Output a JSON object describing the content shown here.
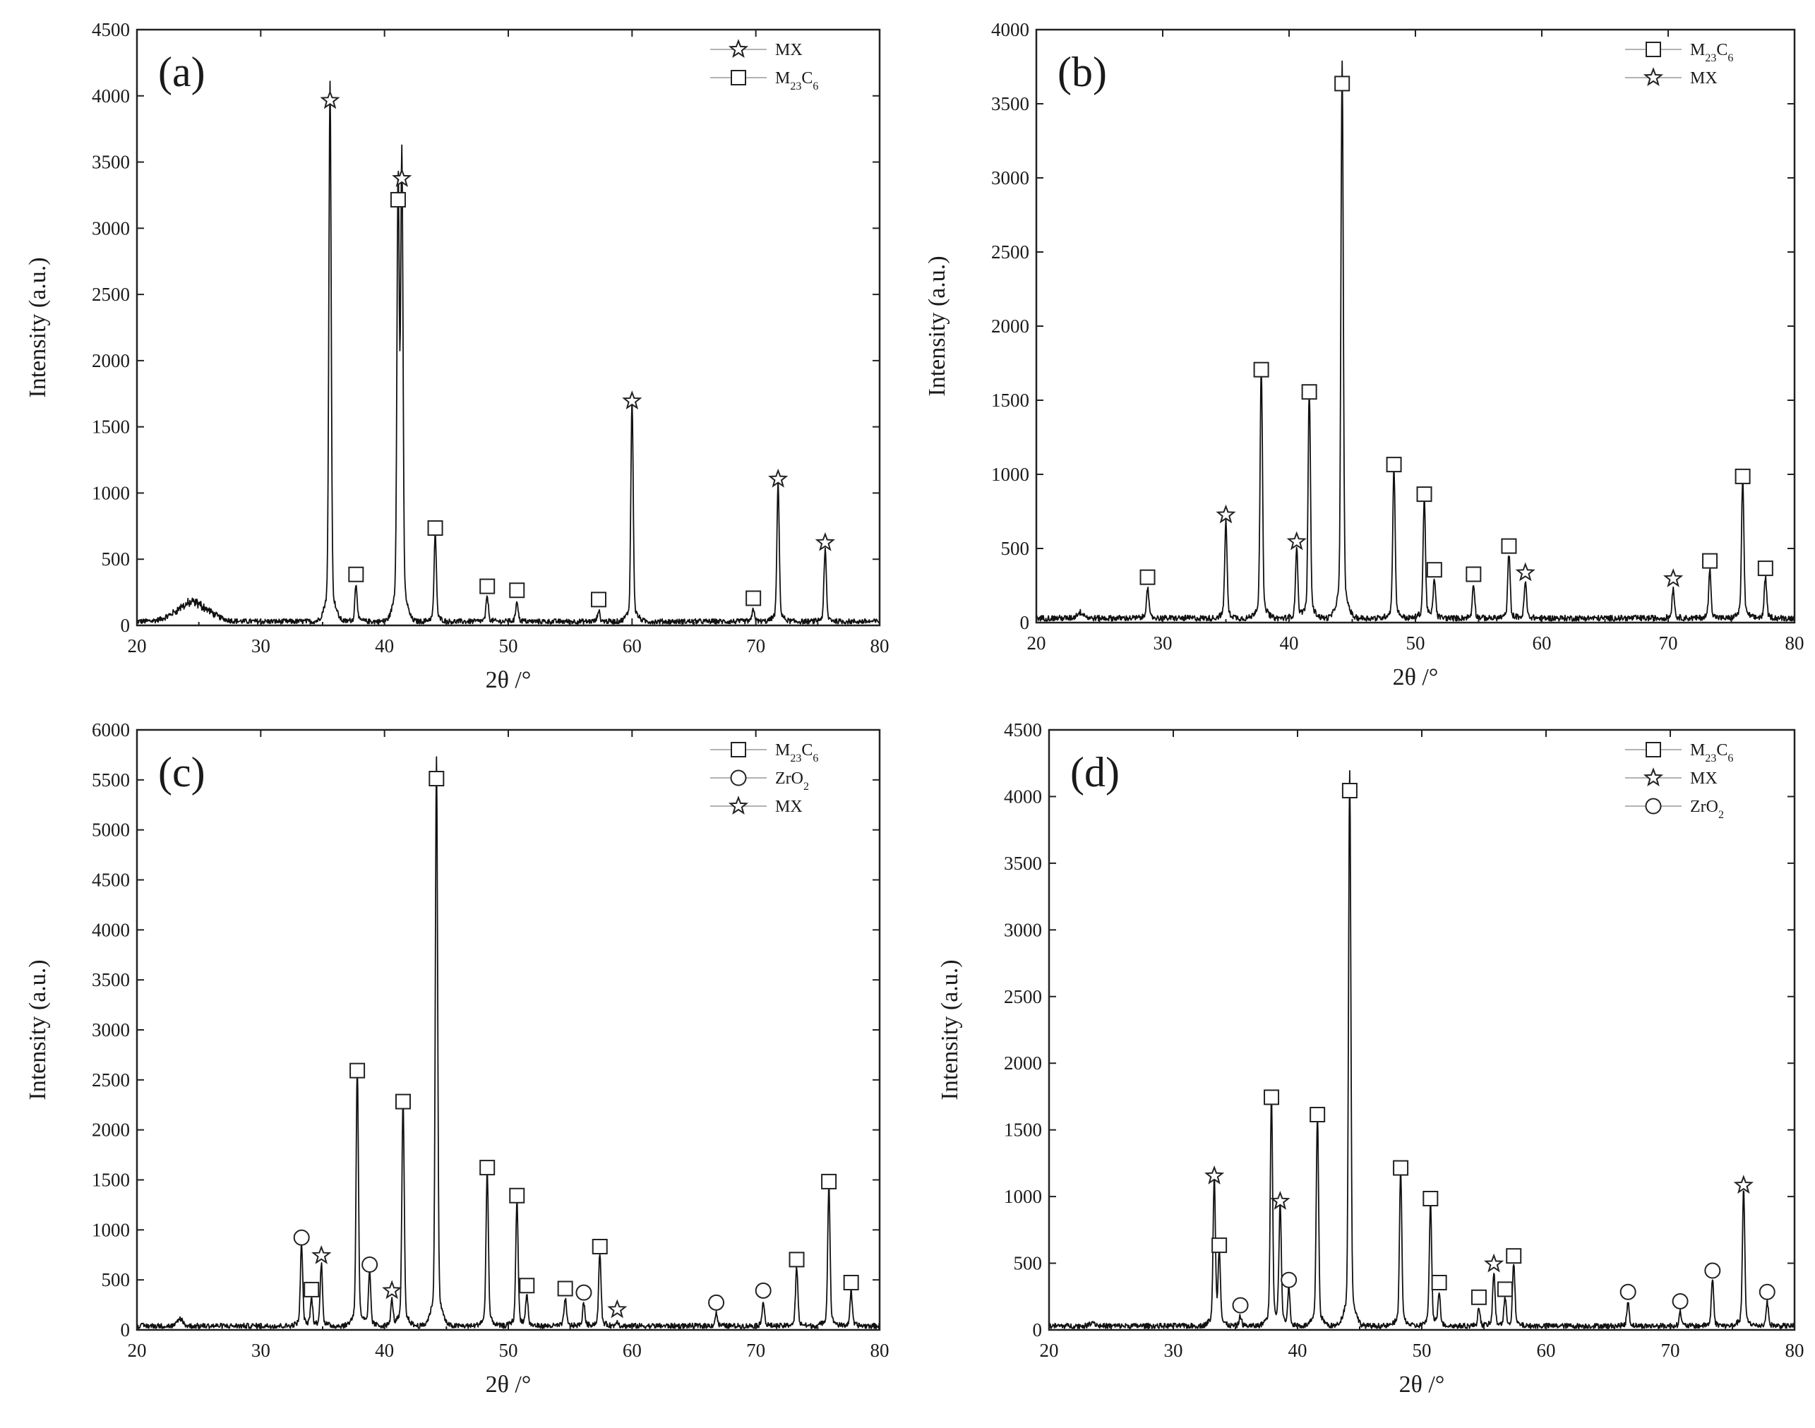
{
  "chart_data": [
    {
      "type": "line",
      "panel": "(a)",
      "xlabel": "2θ /°",
      "ylabel": "Intensity (a.u.)",
      "xlim": [
        20,
        80
      ],
      "ylim": [
        0,
        4500
      ],
      "xticks": [
        "20",
        "30",
        "40",
        "50",
        "60",
        "70",
        "80"
      ],
      "yticks": [
        "0",
        "500",
        "1000",
        "1500",
        "2000",
        "2500",
        "3000",
        "3500",
        "4000",
        "4500"
      ],
      "legend_position": "top-right",
      "legend": [
        {
          "symbol": "star",
          "label": "MX"
        },
        {
          "symbol": "square",
          "label": "M23C6",
          "main": "M",
          "sub1": "23",
          "mid": "C",
          "sub2": "6"
        }
      ],
      "series": [
        {
          "x": [
            20,
            80
          ],
          "y": [
            30,
            30
          ]
        }
      ],
      "peaks": [
        {
          "x": 35.6,
          "y": 3880,
          "marker": "star"
        },
        {
          "x": 37.7,
          "y": 300,
          "marker": "square"
        },
        {
          "x": 41.1,
          "y": 3130,
          "marker": "square"
        },
        {
          "x": 41.4,
          "y": 3290,
          "marker": "star"
        },
        {
          "x": 44.1,
          "y": 650,
          "marker": "square"
        },
        {
          "x": 48.3,
          "y": 210,
          "marker": "square"
        },
        {
          "x": 50.7,
          "y": 180,
          "marker": "square"
        },
        {
          "x": 57.3,
          "y": 110,
          "marker": "square"
        },
        {
          "x": 60.0,
          "y": 1610,
          "marker": "star"
        },
        {
          "x": 69.8,
          "y": 120,
          "marker": "square"
        },
        {
          "x": 71.8,
          "y": 1020,
          "marker": "star"
        },
        {
          "x": 75.6,
          "y": 540,
          "marker": "star"
        }
      ],
      "hump": {
        "center": 24.5,
        "height": 140,
        "width": 1.8
      }
    },
    {
      "type": "line",
      "panel": "(b)",
      "xlabel": "2θ /°",
      "ylabel": "Intensity (a.u.)",
      "xlim": [
        20,
        80
      ],
      "ylim": [
        0,
        4000
      ],
      "xticks": [
        "20",
        "30",
        "40",
        "50",
        "60",
        "70",
        "80"
      ],
      "yticks": [
        "0",
        "500",
        "1000",
        "1500",
        "2000",
        "2500",
        "3000",
        "3500",
        "4000"
      ],
      "legend_position": "top-right",
      "legend": [
        {
          "symbol": "square",
          "label": "M23C6",
          "main": "M",
          "sub1": "23",
          "mid": "C",
          "sub2": "6"
        },
        {
          "symbol": "star",
          "label": "MX"
        }
      ],
      "series": [
        {
          "x": [
            20,
            80
          ],
          "y": [
            30,
            30
          ]
        }
      ],
      "peaks": [
        {
          "x": 28.8,
          "y": 230,
          "marker": "square"
        },
        {
          "x": 35.0,
          "y": 650,
          "marker": "star"
        },
        {
          "x": 37.8,
          "y": 1630,
          "marker": "square"
        },
        {
          "x": 40.6,
          "y": 470,
          "marker": "star"
        },
        {
          "x": 41.6,
          "y": 1480,
          "marker": "square"
        },
        {
          "x": 44.2,
          "y": 3560,
          "marker": "square"
        },
        {
          "x": 48.3,
          "y": 990,
          "marker": "square"
        },
        {
          "x": 50.7,
          "y": 790,
          "marker": "square"
        },
        {
          "x": 51.5,
          "y": 280,
          "marker": "square"
        },
        {
          "x": 54.6,
          "y": 250,
          "marker": "square"
        },
        {
          "x": 57.4,
          "y": 440,
          "marker": "square"
        },
        {
          "x": 58.7,
          "y": 260,
          "marker": "star"
        },
        {
          "x": 70.4,
          "y": 220,
          "marker": "star"
        },
        {
          "x": 73.3,
          "y": 340,
          "marker": "square"
        },
        {
          "x": 75.9,
          "y": 910,
          "marker": "square"
        },
        {
          "x": 77.7,
          "y": 290,
          "marker": "square"
        }
      ],
      "hump": {
        "center": 23.5,
        "height": 40,
        "width": 0.4
      }
    },
    {
      "type": "line",
      "panel": "(c)",
      "xlabel": "2θ /°",
      "ylabel": "Intensity (a.u.)",
      "xlim": [
        20,
        80
      ],
      "ylim": [
        0,
        6000
      ],
      "xticks": [
        "20",
        "30",
        "40",
        "50",
        "60",
        "70",
        "80"
      ],
      "yticks": [
        "0",
        "500",
        "1000",
        "1500",
        "2000",
        "2500",
        "3000",
        "3500",
        "4000",
        "4500",
        "5000",
        "5500",
        "6000"
      ],
      "legend_position": "top-right",
      "legend": [
        {
          "symbol": "square",
          "label": "M23C6",
          "main": "M",
          "sub1": "23",
          "mid": "C",
          "sub2": "6"
        },
        {
          "symbol": "circle",
          "label": "ZrO2",
          "main": "ZrO",
          "sub1": "2",
          "mid": "",
          "sub2": ""
        },
        {
          "symbol": "star",
          "label": "MX"
        }
      ],
      "series": [
        {
          "x": [
            20,
            80
          ],
          "y": [
            40,
            40
          ]
        }
      ],
      "peaks": [
        {
          "x": 33.3,
          "y": 810,
          "marker": "circle"
        },
        {
          "x": 34.1,
          "y": 290,
          "marker": "square"
        },
        {
          "x": 34.9,
          "y": 630,
          "marker": "star"
        },
        {
          "x": 37.8,
          "y": 2480,
          "marker": "square"
        },
        {
          "x": 38.8,
          "y": 540,
          "marker": "circle"
        },
        {
          "x": 40.6,
          "y": 280,
          "marker": "star"
        },
        {
          "x": 41.5,
          "y": 2170,
          "marker": "square"
        },
        {
          "x": 44.2,
          "y": 5400,
          "marker": "square"
        },
        {
          "x": 48.3,
          "y": 1510,
          "marker": "square"
        },
        {
          "x": 50.7,
          "y": 1230,
          "marker": "square"
        },
        {
          "x": 51.5,
          "y": 330,
          "marker": "square"
        },
        {
          "x": 54.6,
          "y": 300,
          "marker": "square"
        },
        {
          "x": 56.1,
          "y": 260,
          "marker": "circle"
        },
        {
          "x": 57.4,
          "y": 720,
          "marker": "square"
        },
        {
          "x": 58.8,
          "y": 90,
          "marker": "star"
        },
        {
          "x": 66.8,
          "y": 160,
          "marker": "circle"
        },
        {
          "x": 70.6,
          "y": 280,
          "marker": "circle"
        },
        {
          "x": 73.3,
          "y": 590,
          "marker": "square"
        },
        {
          "x": 75.9,
          "y": 1370,
          "marker": "square"
        },
        {
          "x": 77.7,
          "y": 360,
          "marker": "square"
        }
      ],
      "hump": {
        "center": 23.5,
        "height": 70,
        "width": 0.3
      }
    },
    {
      "type": "line",
      "panel": "(d)",
      "xlabel": "2θ /°",
      "ylabel": "Intensity (a.u.)",
      "xlim": [
        20,
        80
      ],
      "ylim": [
        0,
        4500
      ],
      "xticks": [
        "20",
        "30",
        "40",
        "50",
        "60",
        "70",
        "80"
      ],
      "yticks": [
        "0",
        "500",
        "1000",
        "1500",
        "2000",
        "2500",
        "3000",
        "3500",
        "4000",
        "4500"
      ],
      "legend_position": "top-right",
      "legend": [
        {
          "symbol": "square",
          "label": "M23C6",
          "main": "M",
          "sub1": "23",
          "mid": "C",
          "sub2": "6"
        },
        {
          "symbol": "star",
          "label": "MX"
        },
        {
          "symbol": "circle",
          "label": "ZrO2",
          "main": "ZrO",
          "sub1": "2",
          "mid": "",
          "sub2": ""
        }
      ],
      "series": [
        {
          "x": [
            20,
            80
          ],
          "y": [
            30,
            30
          ]
        }
      ],
      "peaks": [
        {
          "x": 33.3,
          "y": 1070,
          "marker": "star"
        },
        {
          "x": 33.7,
          "y": 550,
          "marker": "square"
        },
        {
          "x": 35.4,
          "y": 100,
          "marker": "circle"
        },
        {
          "x": 37.9,
          "y": 1660,
          "marker": "square"
        },
        {
          "x": 38.6,
          "y": 880,
          "marker": "star"
        },
        {
          "x": 39.3,
          "y": 290,
          "marker": "circle"
        },
        {
          "x": 41.6,
          "y": 1530,
          "marker": "square"
        },
        {
          "x": 44.2,
          "y": 3960,
          "marker": "square"
        },
        {
          "x": 48.3,
          "y": 1130,
          "marker": "square"
        },
        {
          "x": 50.7,
          "y": 900,
          "marker": "square"
        },
        {
          "x": 51.4,
          "y": 270,
          "marker": "square"
        },
        {
          "x": 54.6,
          "y": 160,
          "marker": "square"
        },
        {
          "x": 55.8,
          "y": 410,
          "marker": "star"
        },
        {
          "x": 56.7,
          "y": 220,
          "marker": "square"
        },
        {
          "x": 57.4,
          "y": 470,
          "marker": "square"
        },
        {
          "x": 66.6,
          "y": 200,
          "marker": "circle"
        },
        {
          "x": 70.8,
          "y": 130,
          "marker": "circle"
        },
        {
          "x": 73.4,
          "y": 360,
          "marker": "circle"
        },
        {
          "x": 75.9,
          "y": 1000,
          "marker": "star"
        },
        {
          "x": 77.8,
          "y": 200,
          "marker": "circle"
        }
      ],
      "hump": {
        "center": 23.5,
        "height": 30,
        "width": 0.3
      }
    }
  ]
}
